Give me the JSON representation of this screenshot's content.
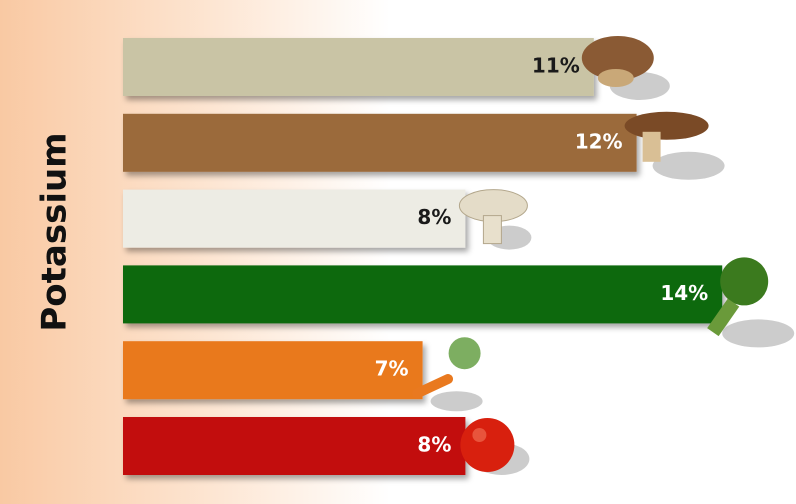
{
  "chart_data": {
    "type": "hbar",
    "title": "Potassium",
    "values": [
      11,
      12,
      8,
      14,
      7,
      8
    ],
    "value_labels": [
      "11%",
      "12%",
      "8%",
      "14%",
      "7%",
      "8%"
    ],
    "colors": [
      "#c9c4a5",
      "#9b6b3b",
      "#edece4",
      "#0b690b",
      "#e9791f",
      "#c20e0e"
    ],
    "label_colors": [
      "#1a1a1a",
      "#ffffff",
      "#1a1a1a",
      "#ffffff",
      "#ffffff",
      "#ffffff"
    ]
  }
}
